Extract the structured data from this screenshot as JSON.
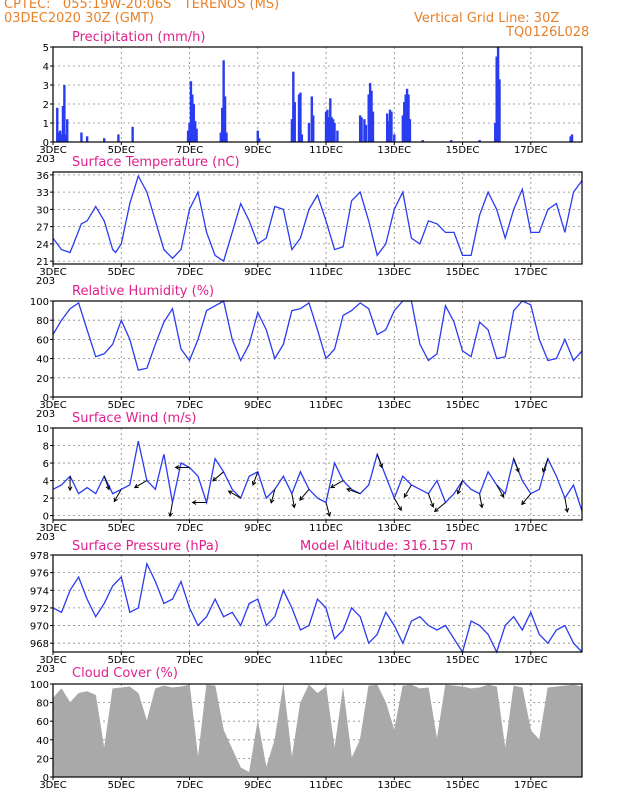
{
  "header": {
    "line1": "CPTEC:   055:19W-20:06S   TERENOS (MS)",
    "line2": "03DEC2020 30Z (GMT)",
    "grid_note": "Vertical Grid Line: 30Z",
    "code": "TQ0126L028"
  },
  "colors": {
    "header": "#e8822a",
    "title": "#e0208c",
    "line": "#2a3cf0",
    "cloud": "#a9a9a9",
    "wind_arrow": "#000000"
  },
  "x_ticks": [
    "3DEC",
    "5DEC",
    "7DEC",
    "9DEC",
    "11DEC",
    "13DEC",
    "15DEC",
    "17DEC"
  ],
  "x_ticks_minor": "203",
  "chart_data": [
    {
      "type": "bar",
      "title": "Precipitation (mm/h)",
      "x": "hours since 3DEC 03Z",
      "ylim": [
        0,
        5
      ],
      "yticks": [
        "0",
        "1",
        "2",
        "3",
        "4",
        "5"
      ],
      "events": [
        [
          3,
          1.8
        ],
        [
          4,
          0.5
        ],
        [
          5,
          0.6
        ],
        [
          6,
          0.4
        ],
        [
          7,
          1.9
        ],
        [
          8,
          3.0
        ],
        [
          9,
          0.4
        ],
        [
          10,
          1.2
        ],
        [
          20,
          0.5
        ],
        [
          24,
          0.3
        ],
        [
          36,
          0.2
        ],
        [
          46,
          0.4
        ],
        [
          56,
          0.8
        ],
        [
          95,
          0.6
        ],
        [
          96,
          1.0
        ],
        [
          97,
          3.2
        ],
        [
          98,
          2.5
        ],
        [
          99,
          2.0
        ],
        [
          100,
          1.1
        ],
        [
          101,
          0.7
        ],
        [
          118,
          0.5
        ],
        [
          119,
          1.8
        ],
        [
          120,
          4.3
        ],
        [
          121,
          2.4
        ],
        [
          122,
          0.5
        ],
        [
          144,
          0.6
        ],
        [
          145,
          0.2
        ],
        [
          168,
          1.2
        ],
        [
          169,
          3.7
        ],
        [
          170,
          2.1
        ],
        [
          173,
          2.5
        ],
        [
          174,
          2.6
        ],
        [
          175,
          0.4
        ],
        [
          180,
          1.0
        ],
        [
          182,
          2.4
        ],
        [
          183,
          1.4
        ],
        [
          192,
          1.6
        ],
        [
          193,
          1.7
        ],
        [
          194,
          1.3
        ],
        [
          195,
          2.3
        ],
        [
          196,
          1.3
        ],
        [
          197,
          1.2
        ],
        [
          198,
          1.0
        ],
        [
          200,
          0.6
        ],
        [
          216,
          1.4
        ],
        [
          217,
          1.3
        ],
        [
          219,
          1.2
        ],
        [
          220,
          0.9
        ],
        [
          222,
          2.5
        ],
        [
          223,
          3.1
        ],
        [
          224,
          2.7
        ],
        [
          225,
          1.6
        ],
        [
          235,
          1.5
        ],
        [
          236,
          1.1
        ],
        [
          237,
          1.7
        ],
        [
          238,
          1.6
        ],
        [
          240,
          0.4
        ],
        [
          246,
          1.4
        ],
        [
          247,
          2.1
        ],
        [
          248,
          2.5
        ],
        [
          249,
          2.8
        ],
        [
          250,
          2.5
        ],
        [
          251,
          1.2
        ],
        [
          260,
          0.1
        ],
        [
          280,
          0.1
        ],
        [
          300,
          0.1
        ],
        [
          311,
          1.0
        ],
        [
          312,
          4.5
        ],
        [
          313,
          5.0
        ],
        [
          314,
          3.3
        ],
        [
          364,
          0.3
        ],
        [
          365,
          0.4
        ]
      ]
    },
    {
      "type": "line",
      "title": "Surface Temperature (nC)",
      "ylim": [
        20.5,
        36.5
      ],
      "yticks": [
        "21",
        "24",
        "27",
        "30",
        "33",
        "36"
      ],
      "x_hours": [
        0,
        6,
        12,
        20,
        24,
        30,
        36,
        42,
        44,
        48,
        54,
        60,
        66,
        72,
        78,
        84,
        90,
        96,
        102,
        108,
        114,
        120,
        126,
        132,
        138,
        144,
        150,
        156,
        162,
        168,
        174,
        180,
        186,
        192,
        198,
        204,
        210,
        216,
        222,
        228,
        234,
        240,
        246,
        252,
        258,
        264,
        270,
        276,
        282,
        288,
        294,
        300,
        306,
        312,
        318,
        324,
        330,
        336,
        342,
        348,
        354,
        360,
        366,
        372
      ],
      "values": [
        25,
        23,
        22.5,
        27.5,
        28,
        30.5,
        28,
        23,
        22.5,
        24,
        31,
        35.8,
        33,
        28,
        23,
        21.5,
        23,
        30,
        33,
        26,
        22,
        21,
        26,
        31,
        28,
        24,
        25,
        30.5,
        30,
        23,
        25,
        30,
        32.5,
        28,
        23,
        23.5,
        31.5,
        33,
        28,
        22,
        24,
        30,
        33,
        25,
        24,
        28,
        27.5,
        26,
        26,
        22,
        22,
        29,
        33,
        30,
        25,
        30,
        33.5,
        26,
        26,
        30,
        31,
        26,
        33,
        35
      ]
    },
    {
      "type": "line",
      "title": "Relative Humidity (%)",
      "ylim": [
        0,
        100
      ],
      "yticks": [
        "0",
        "20",
        "40",
        "60",
        "80",
        "100"
      ],
      "x_hours": [
        0,
        6,
        12,
        18,
        24,
        30,
        36,
        42,
        48,
        54,
        60,
        66,
        72,
        78,
        84,
        90,
        96,
        102,
        108,
        114,
        120,
        126,
        132,
        138,
        144,
        150,
        156,
        162,
        168,
        174,
        180,
        186,
        192,
        198,
        204,
        210,
        216,
        222,
        228,
        234,
        240,
        246,
        252,
        258,
        264,
        270,
        276,
        282,
        288,
        294,
        300,
        306,
        312,
        318,
        324,
        330,
        336,
        342,
        348,
        354,
        360,
        366,
        372
      ],
      "values": [
        65,
        80,
        92,
        98,
        70,
        42,
        45,
        55,
        80,
        60,
        28,
        30,
        55,
        78,
        92,
        50,
        38,
        60,
        90,
        95,
        100,
        60,
        38,
        55,
        88,
        70,
        40,
        55,
        90,
        92,
        98,
        70,
        40,
        50,
        85,
        90,
        98,
        92,
        65,
        70,
        90,
        100,
        100,
        55,
        38,
        45,
        95,
        78,
        48,
        42,
        78,
        70,
        40,
        42,
        90,
        100,
        96,
        60,
        38,
        40,
        60,
        38,
        48
      ]
    },
    {
      "type": "line",
      "title": "Surface Wind (m/s)",
      "ylim": [
        -0.5,
        10
      ],
      "yticks": [
        "0",
        "2",
        "4",
        "6",
        "8",
        "10"
      ],
      "x_hours": [
        0,
        6,
        12,
        18,
        24,
        30,
        36,
        42,
        48,
        54,
        60,
        66,
        72,
        78,
        84,
        90,
        96,
        102,
        108,
        114,
        120,
        126,
        132,
        138,
        144,
        150,
        156,
        162,
        168,
        174,
        180,
        186,
        192,
        198,
        204,
        210,
        216,
        222,
        228,
        234,
        240,
        246,
        252,
        258,
        264,
        270,
        276,
        282,
        288,
        294,
        300,
        306,
        312,
        318,
        324,
        330,
        336,
        342,
        348,
        354,
        360,
        366,
        372
      ],
      "values": [
        3.0,
        3.5,
        4.5,
        2.5,
        3.2,
        2.5,
        4.5,
        2.5,
        3.0,
        3.5,
        8.5,
        4.0,
        3.0,
        7.0,
        1.5,
        6.0,
        5.5,
        4.5,
        1.5,
        6.5,
        5.0,
        3.0,
        2.0,
        4.5,
        5.0,
        2.0,
        3.0,
        4.5,
        2.5,
        5.0,
        3.0,
        2.0,
        1.5,
        6.0,
        4.0,
        3.0,
        2.5,
        3.5,
        7.0,
        4.5,
        2.0,
        4.5,
        3.5,
        3.0,
        2.5,
        4.0,
        1.5,
        2.5,
        4.0,
        3.0,
        2.5,
        5.0,
        3.5,
        2.5,
        6.5,
        4.0,
        2.5,
        3.0,
        6.5,
        4.5,
        2.0,
        3.5,
        0.5
      ],
      "arrows": [
        {
          "h": 12,
          "dir": 0
        },
        {
          "h": 36,
          "dir": 20
        },
        {
          "h": 48,
          "dir": 330
        },
        {
          "h": 66,
          "dir": 300
        },
        {
          "h": 84,
          "dir": 350
        },
        {
          "h": 96,
          "dir": 270
        },
        {
          "h": 108,
          "dir": 270
        },
        {
          "h": 120,
          "dir": 310
        },
        {
          "h": 132,
          "dir": 240
        },
        {
          "h": 144,
          "dir": 340
        },
        {
          "h": 156,
          "dir": 345
        },
        {
          "h": 168,
          "dir": 10
        },
        {
          "h": 180,
          "dir": 320
        },
        {
          "h": 192,
          "dir": 15
        },
        {
          "h": 204,
          "dir": 300
        },
        {
          "h": 216,
          "dir": 250
        },
        {
          "h": 228,
          "dir": 20
        },
        {
          "h": 240,
          "dir": 30
        },
        {
          "h": 252,
          "dir": 330
        },
        {
          "h": 264,
          "dir": 20
        },
        {
          "h": 276,
          "dir": 310
        },
        {
          "h": 288,
          "dir": 340
        },
        {
          "h": 300,
          "dir": 10
        },
        {
          "h": 312,
          "dir": 30
        },
        {
          "h": 324,
          "dir": 20
        },
        {
          "h": 336,
          "dir": 320
        },
        {
          "h": 348,
          "dir": 340
        },
        {
          "h": 360,
          "dir": 10
        }
      ]
    },
    {
      "type": "line",
      "title": "Surface Pressure (hPa)",
      "annotation": "Model Altitude: 316.157 m",
      "ylim": [
        967,
        978
      ],
      "yticks": [
        "968",
        "970",
        "972",
        "974",
        "976",
        "978"
      ],
      "x_hours": [
        0,
        6,
        12,
        18,
        24,
        30,
        36,
        42,
        48,
        54,
        60,
        66,
        72,
        78,
        84,
        90,
        96,
        102,
        108,
        114,
        120,
        126,
        132,
        138,
        144,
        150,
        156,
        162,
        168,
        174,
        180,
        186,
        192,
        198,
        204,
        210,
        216,
        222,
        228,
        234,
        240,
        246,
        252,
        258,
        264,
        270,
        276,
        282,
        288,
        294,
        300,
        306,
        312,
        318,
        324,
        330,
        336,
        342,
        348,
        354,
        360,
        366,
        372
      ],
      "values": [
        972,
        971.5,
        974,
        975.5,
        973,
        971,
        972.5,
        974.5,
        975.5,
        971.5,
        972,
        977,
        975,
        972.5,
        973,
        975,
        972,
        970,
        971,
        973,
        971,
        971.5,
        970,
        972.5,
        973,
        970,
        971,
        974,
        972,
        969.5,
        970,
        973,
        972,
        968.5,
        969.5,
        972,
        971,
        968,
        969,
        971.5,
        970,
        968,
        970.5,
        971,
        970,
        969.5,
        970,
        968.5,
        967,
        970.5,
        970,
        969,
        967,
        970,
        971,
        969.5,
        971.5,
        969,
        968,
        969.5,
        970,
        968,
        967
      ]
    },
    {
      "type": "area",
      "title": "Cloud Cover (%)",
      "ylim": [
        0,
        100
      ],
      "yticks": [
        "0",
        "20",
        "40",
        "60",
        "80",
        "100"
      ],
      "x_hours": [
        0,
        6,
        12,
        18,
        24,
        30,
        36,
        42,
        48,
        54,
        60,
        66,
        72,
        78,
        84,
        90,
        96,
        102,
        108,
        114,
        120,
        126,
        132,
        138,
        144,
        150,
        156,
        162,
        168,
        174,
        180,
        186,
        192,
        198,
        204,
        210,
        216,
        222,
        228,
        234,
        240,
        246,
        252,
        258,
        264,
        270,
        276,
        282,
        288,
        294,
        300,
        306,
        312,
        318,
        324,
        330,
        336,
        342,
        348,
        354,
        360,
        366,
        372
      ],
      "values": [
        85,
        95,
        80,
        90,
        92,
        88,
        30,
        95,
        96,
        97,
        90,
        60,
        95,
        98,
        96,
        97,
        99,
        20,
        99,
        98,
        50,
        30,
        10,
        5,
        60,
        10,
        40,
        99,
        20,
        80,
        99,
        90,
        97,
        30,
        95,
        20,
        40,
        98,
        99,
        80,
        50,
        98,
        99,
        95,
        96,
        40,
        99,
        98,
        97,
        95,
        96,
        99,
        97,
        30,
        98,
        96,
        50,
        40,
        96,
        97,
        98,
        99,
        97
      ]
    }
  ]
}
